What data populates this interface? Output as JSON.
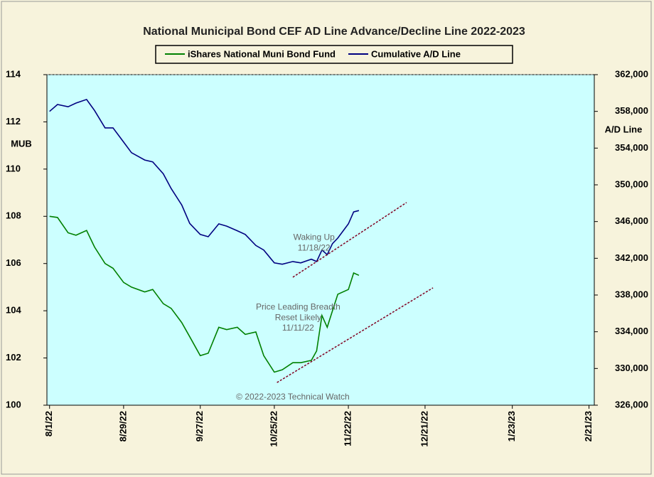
{
  "chart_data": {
    "type": "line",
    "title": "National Municipal Bond CEF AD Line Advance/Decline Line 2022-2023",
    "ylabel": "MUB",
    "y2label": "A/D Line",
    "x": [
      "2022-08-01",
      "2022-08-04",
      "2022-08-08",
      "2022-08-11",
      "2022-08-15",
      "2022-08-18",
      "2022-08-22",
      "2022-08-25",
      "2022-08-29",
      "2022-09-01",
      "2022-09-06",
      "2022-09-09",
      "2022-09-13",
      "2022-09-16",
      "2022-09-20",
      "2022-09-23",
      "2022-09-27",
      "2022-09-30",
      "2022-10-04",
      "2022-10-07",
      "2022-10-11",
      "2022-10-14",
      "2022-10-18",
      "2022-10-21",
      "2022-10-25",
      "2022-10-28",
      "2022-11-01",
      "2022-11-04",
      "2022-11-08",
      "2022-11-10",
      "2022-11-12",
      "2022-11-14",
      "2022-11-16",
      "2022-11-18",
      "2022-11-22",
      "2022-11-24",
      "2022-11-26"
    ],
    "series": [
      {
        "name": "iShares National Muni Bond Fund",
        "color": "#008000",
        "axis": "y",
        "values": [
          108.0,
          107.95,
          107.3,
          107.2,
          107.4,
          106.7,
          106.0,
          105.8,
          105.2,
          105.0,
          104.8,
          104.9,
          104.3,
          104.1,
          103.5,
          102.9,
          102.1,
          102.2,
          103.3,
          103.2,
          103.3,
          103.0,
          103.1,
          102.1,
          101.4,
          101.5,
          101.8,
          101.8,
          101.9,
          102.3,
          103.8,
          103.3,
          104.0,
          104.7,
          104.9,
          105.6,
          105.5
        ]
      },
      {
        "name": "Cumulative A/D Line",
        "color": "#000080",
        "axis": "y2",
        "values": [
          358000,
          358750,
          358500,
          358900,
          359300,
          358100,
          356200,
          356200,
          354650,
          353500,
          352700,
          352500,
          351200,
          349600,
          347800,
          345800,
          344600,
          344350,
          345750,
          345500,
          345000,
          344600,
          343400,
          342900,
          341500,
          341350,
          341650,
          341500,
          341900,
          341650,
          342900,
          342400,
          343600,
          344200,
          345750,
          347050,
          347200
        ]
      }
    ],
    "xlim": [
      "2022-07-31",
      "2023-02-23"
    ],
    "xticks": [
      {
        "value": "2022-08-01",
        "label": "8/1/22"
      },
      {
        "value": "2022-08-29",
        "label": "8/29/22"
      },
      {
        "value": "2022-09-27",
        "label": "9/27/22"
      },
      {
        "value": "2022-10-25",
        "label": "10/25/22"
      },
      {
        "value": "2022-11-22",
        "label": "11/22/22"
      },
      {
        "value": "2022-12-21",
        "label": "12/21/22"
      },
      {
        "value": "2023-01-23",
        "label": "1/23/23"
      },
      {
        "value": "2023-02-21",
        "label": "2/21/23"
      }
    ],
    "ylim": [
      100,
      114
    ],
    "yticks": [
      100,
      102,
      104,
      106,
      108,
      110,
      112,
      114
    ],
    "y2lim": [
      326000,
      362000
    ],
    "y2ticks": [
      {
        "value": 326000,
        "label": "326,000"
      },
      {
        "value": 330000,
        "label": "330,000"
      },
      {
        "value": 334000,
        "label": "334,000"
      },
      {
        "value": 338000,
        "label": "338,000"
      },
      {
        "value": 342000,
        "label": "342,000"
      },
      {
        "value": 346000,
        "label": "346,000"
      },
      {
        "value": 350000,
        "label": "350,000"
      },
      {
        "value": 354000,
        "label": "354,000"
      },
      {
        "value": 358000,
        "label": "358,000"
      },
      {
        "value": 362000,
        "label": "362,000"
      }
    ],
    "trendlines": [
      {
        "axis": "y2",
        "color": "#800020",
        "x": [
          "2022-11-01",
          "2022-12-14"
        ],
        "values": [
          339940,
          348070
        ]
      },
      {
        "axis": "y",
        "color": "#800020",
        "x": [
          "2022-10-26",
          "2022-12-24"
        ],
        "values": [
          100.96,
          104.97
        ]
      }
    ],
    "annotations": [
      {
        "text": "Waking Up",
        "x": "2022-11-09",
        "y": 107.1,
        "axis": "y"
      },
      {
        "text": "11/18/22",
        "x": "2022-11-09",
        "y": 106.65,
        "axis": "y"
      },
      {
        "text": "Price Leading Breadth",
        "x": "2022-11-03",
        "y": 104.15,
        "axis": "y"
      },
      {
        "text": "Reset Likely",
        "x": "2022-11-03",
        "y": 103.7,
        "axis": "y"
      },
      {
        "text": "11/11/22",
        "x": "2022-11-03",
        "y": 103.25,
        "axis": "y"
      },
      {
        "text": "© 2022-2023  Technical Watch",
        "x": "2022-11-01",
        "y": 100.33,
        "axis": "y"
      }
    ]
  }
}
